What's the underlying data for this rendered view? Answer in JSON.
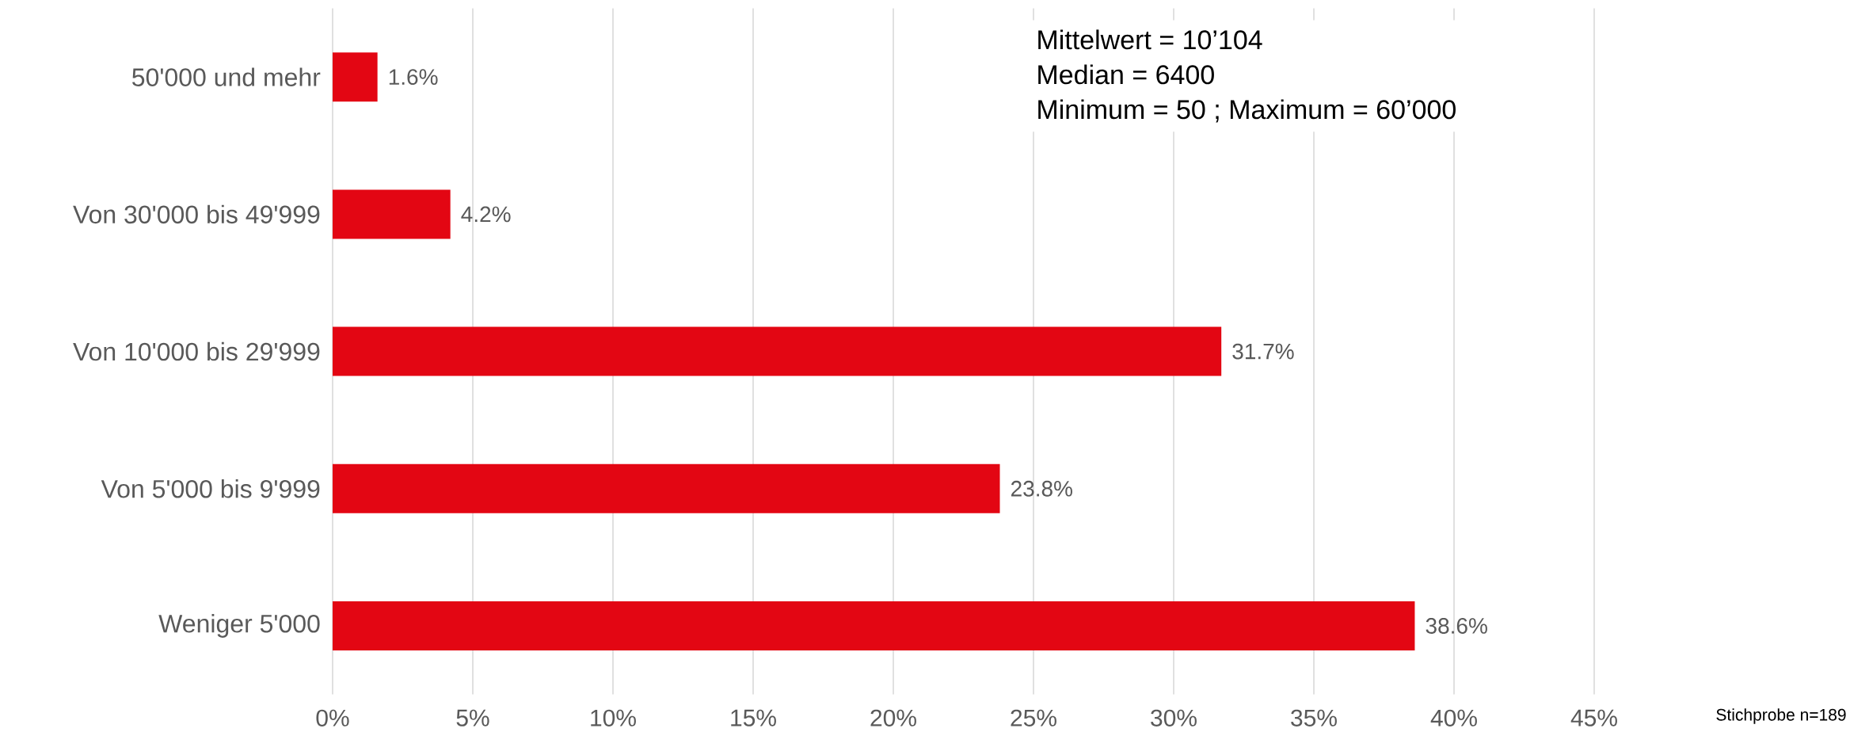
{
  "chart_data": {
    "type": "bar",
    "orientation": "horizontal",
    "categories": [
      "50'000 und mehr",
      "Von 30'000 bis 49'999",
      "Von 10'000 bis 29'999",
      "Von 5'000 bis 9'999",
      "Weniger 5'000"
    ],
    "values": [
      1.6,
      4.2,
      31.7,
      23.8,
      38.6
    ],
    "value_labels": [
      "1.6%",
      "4.2%",
      "31.7%",
      "23.8%",
      "38.6%"
    ],
    "color": "#e30613",
    "xlim": [
      0,
      45
    ],
    "xticks": [
      {
        "value": 0,
        "label": "0%"
      },
      {
        "value": 5,
        "label": "5%"
      },
      {
        "value": 10,
        "label": "10%"
      },
      {
        "value": 15,
        "label": "15%"
      },
      {
        "value": 20,
        "label": "20%"
      },
      {
        "value": 25,
        "label": "25%"
      },
      {
        "value": 30,
        "label": "30%"
      },
      {
        "value": 35,
        "label": "35%"
      },
      {
        "value": 40,
        "label": "40%"
      },
      {
        "value": 45,
        "label": "45%"
      }
    ],
    "grid": "x",
    "annotations": [
      "Mittelwert = 10’104",
      "Median = 6400",
      "Minimum = 50 ; Maximum = 60’000",
      "Stichprobe n=189"
    ]
  }
}
